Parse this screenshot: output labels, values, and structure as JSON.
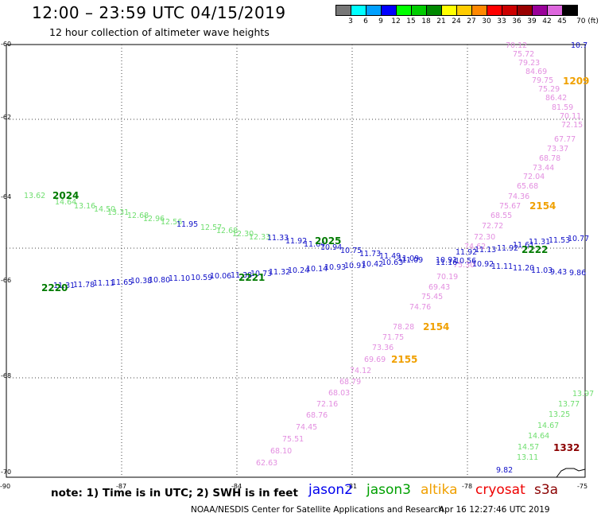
{
  "header": {
    "title": "12:00 – 23:59 UTC 04/15/2019",
    "subtitle": "12 hour collection of altimeter wave heights"
  },
  "colorbar": {
    "labels": [
      "3",
      "6",
      "9",
      "12",
      "15",
      "18",
      "21",
      "24",
      "27",
      "30",
      "33",
      "36",
      "39",
      "42",
      "45",
      "70 (ft)"
    ],
    "colors": [
      "#777777",
      "#00ffff",
      "#00a0ff",
      "#0000ff",
      "#00ff00",
      "#00cc00",
      "#008800",
      "#ffff00",
      "#ffcc00",
      "#ff8800",
      "#ff0000",
      "#cc0000",
      "#990000",
      "#990099",
      "#dd66dd",
      "#000000"
    ]
  },
  "axes": {
    "lat_labels": [
      "-60",
      "-62",
      "-64",
      "-66",
      "-68",
      "-70"
    ],
    "lon_labels": [
      "-90",
      "-87",
      "-84",
      "-81",
      "-78",
      "-75"
    ]
  },
  "tracks": [
    {
      "name": "pink-descending",
      "color": "#e38fe0",
      "labels": [
        "70.12",
        "75.72",
        "79.23",
        "84.69",
        "79.75",
        "75.29",
        "86.42",
        "81.59",
        "70.11",
        "72.15",
        "67.77",
        "73.37",
        "68.78",
        "73.44",
        "72.04",
        "65.68",
        "74.36",
        "75.67",
        "68.55",
        "72.72",
        "72.30",
        "74.62",
        "75.30",
        "70.19",
        "69.43",
        "75.45",
        "74.76",
        "78.28",
        "71.75",
        "73.36",
        "69.69",
        "74.12",
        "68.79",
        "68.03",
        "72.16",
        "68.76",
        "74.45",
        "75.51",
        "68.10",
        "62.63"
      ]
    },
    {
      "name": "green-light-upper",
      "color": "#6fde6f",
      "labels": [
        "13.62",
        "14.64",
        "13.16",
        "14.50",
        "13.31",
        "12.68",
        "12.96",
        "12.56",
        "12.57",
        "12.68",
        "12.30",
        "12.33"
      ]
    },
    {
      "name": "green-light-right",
      "color": "#6fde6f",
      "labels": [
        "13.97",
        "13.77",
        "13.25",
        "14.67",
        "14.64",
        "14.57",
        "13.11"
      ]
    },
    {
      "name": "blue-upper",
      "color": "#1010c8",
      "labels": [
        "11.95",
        "11.33",
        "11.92",
        "11.64",
        "10.94",
        "10.75",
        "11.73",
        "11.49",
        "11.09",
        "10.91",
        "11.92",
        "11.13",
        "11.92",
        "11.61",
        "11.31",
        "11.53",
        "10.77"
      ]
    },
    {
      "name": "blue-lower",
      "color": "#1010c8",
      "labels": [
        "11.31",
        "11.78",
        "11.11",
        "11.65",
        "10.38",
        "10.80",
        "11.10",
        "10.59",
        "10.06",
        "11.38",
        "10.73",
        "11.32",
        "10.24",
        "10.14",
        "10.93",
        "10.91",
        "10.42",
        "10.63",
        "11.09",
        "11.16",
        "10.56",
        "10.92",
        "11.11",
        "11.20",
        "11.03",
        "9.43",
        "9.86",
        "9.82"
      ]
    },
    {
      "name": "blue-top-right",
      "color": "#1010c8",
      "labels": [
        "10.7"
      ]
    }
  ],
  "pass_labels": [
    {
      "text": "2024",
      "color": "#007a00"
    },
    {
      "text": "2025",
      "color": "#007a00"
    },
    {
      "text": "2220",
      "color": "#007a00"
    },
    {
      "text": "2221",
      "color": "#007a00"
    },
    {
      "text": "2222",
      "color": "#007a00"
    },
    {
      "text": "2154",
      "color": "#f0a000"
    },
    {
      "text": "2154",
      "color": "#f0a000"
    },
    {
      "text": "2155",
      "color": "#f0a000"
    },
    {
      "text": "1209",
      "color": "#f0a000"
    },
    {
      "text": "1332",
      "color": "#8b0000"
    }
  ],
  "footer": {
    "note": "note: 1) Time is in UTC; 2) SWH is in feet",
    "satellites": [
      {
        "name": "jason2",
        "color": "#0000ee"
      },
      {
        "name": "jason3",
        "color": "#00a000"
      },
      {
        "name": "altika",
        "color": "#f0a000"
      },
      {
        "name": "cryosat",
        "color": "#ee0000"
      },
      {
        "name": "s3a",
        "color": "#8b0000"
      }
    ],
    "credit": "NOAA/NESDIS Center for Satellite Applications and Research",
    "timestamp": "Apr 16 12:27:46 UTC 2019"
  }
}
